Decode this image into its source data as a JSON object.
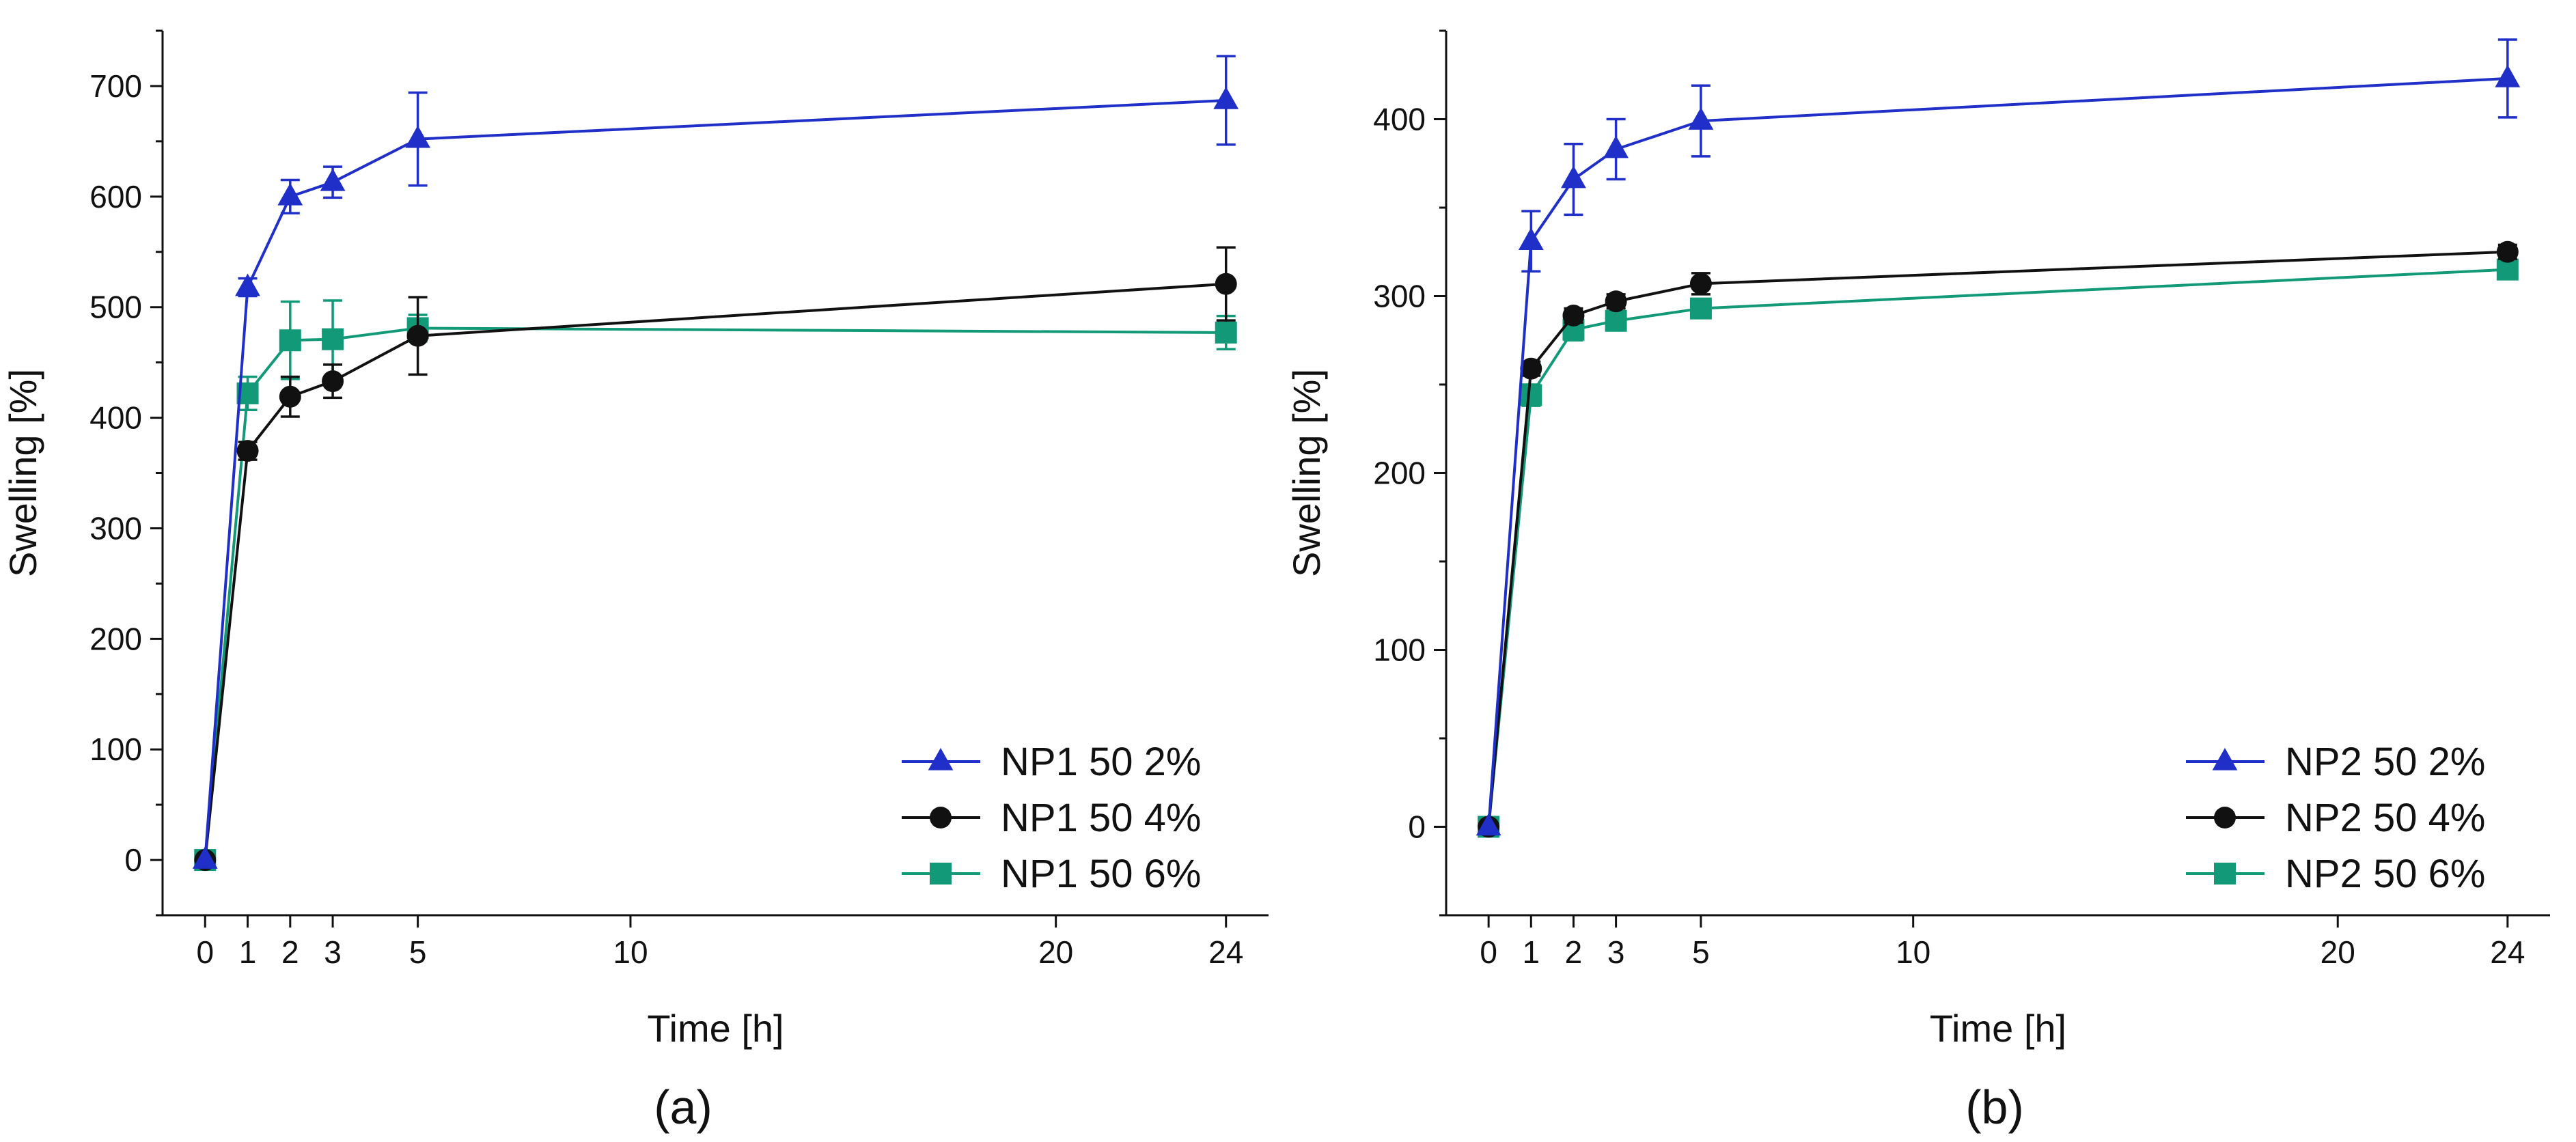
{
  "figure": {
    "panels": [
      "(a)",
      "(b)"
    ]
  },
  "colors": {
    "series_2pct": "#1f2fc8",
    "series_4pct": "#111111",
    "series_6pct": "#129a78",
    "axis": "#111111"
  },
  "chart_data": [
    {
      "type": "line",
      "caption": "(a)",
      "title": "",
      "xlabel": "Time [h]",
      "ylabel": "Swelling [%]",
      "xlim": [
        -1,
        25
      ],
      "ylim": [
        -50,
        750
      ],
      "xticks": [
        0,
        1,
        2,
        3,
        5,
        10,
        20,
        24
      ],
      "yticks": [
        0,
        100,
        200,
        300,
        400,
        500,
        600,
        700
      ],
      "legend_position": "bottom-right",
      "x": [
        0,
        1,
        2,
        3,
        5,
        24
      ],
      "series": [
        {
          "name": "NP1 50 2%",
          "marker": "triangle",
          "color": "#1f2fc8",
          "values": [
            0,
            518,
            600,
            613,
            652,
            687
          ],
          "errors": [
            0,
            8,
            15,
            14,
            42,
            40
          ]
        },
        {
          "name": "NP1 50 4%",
          "marker": "circle",
          "color": "#111111",
          "values": [
            0,
            370,
            419,
            433,
            474,
            521
          ],
          "errors": [
            0,
            8,
            18,
            15,
            35,
            33
          ]
        },
        {
          "name": "NP1 50 6%",
          "marker": "square",
          "color": "#129a78",
          "values": [
            0,
            422,
            470,
            471,
            481,
            477
          ],
          "errors": [
            0,
            15,
            35,
            35,
            12,
            15
          ]
        }
      ]
    },
    {
      "type": "line",
      "caption": "(b)",
      "title": "",
      "xlabel": "Time [h]",
      "ylabel": "Swelling [%]",
      "xlim": [
        -1,
        25
      ],
      "ylim": [
        -50,
        450
      ],
      "xticks": [
        0,
        1,
        2,
        3,
        5,
        10,
        20,
        24
      ],
      "yticks": [
        0,
        100,
        200,
        300,
        400
      ],
      "legend_position": "bottom-right",
      "x": [
        0,
        1,
        2,
        3,
        5,
        24
      ],
      "series": [
        {
          "name": "NP2 50 2%",
          "marker": "triangle",
          "color": "#1f2fc8",
          "values": [
            0,
            331,
            366,
            383,
            399,
            423
          ],
          "errors": [
            0,
            17,
            20,
            17,
            20,
            22
          ]
        },
        {
          "name": "NP2 50 4%",
          "marker": "circle",
          "color": "#111111",
          "values": [
            0,
            259,
            289,
            297,
            307,
            325
          ],
          "errors": [
            0,
            4,
            4,
            4,
            6,
            4
          ]
        },
        {
          "name": "NP2 50 6%",
          "marker": "square",
          "color": "#129a78",
          "values": [
            0,
            244,
            281,
            286,
            293,
            315
          ],
          "errors": [
            0,
            6,
            6,
            5,
            5,
            4
          ]
        }
      ]
    }
  ]
}
